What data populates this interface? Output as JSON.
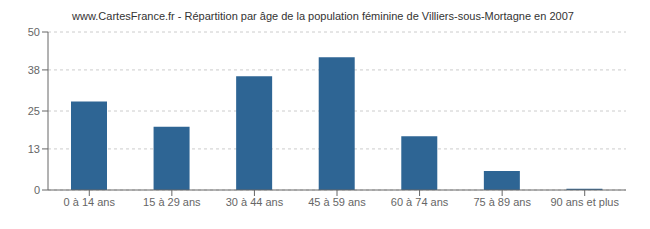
{
  "chart_data": {
    "type": "bar",
    "title": "www.CartesFrance.fr - Répartition par âge de la population féminine de Villiers-sous-Mortagne en 2007",
    "categories": [
      "0 à 14 ans",
      "15 à 29 ans",
      "30 à 44 ans",
      "45 à 59 ans",
      "60 à 74 ans",
      "75 à 89 ans",
      "90 ans et plus"
    ],
    "values": [
      28,
      20,
      36,
      42,
      17,
      6,
      0.4
    ],
    "color": "#2e6594",
    "ylim": [
      0,
      50
    ],
    "yticks": [
      0,
      13,
      25,
      38,
      50
    ],
    "grid": true
  }
}
